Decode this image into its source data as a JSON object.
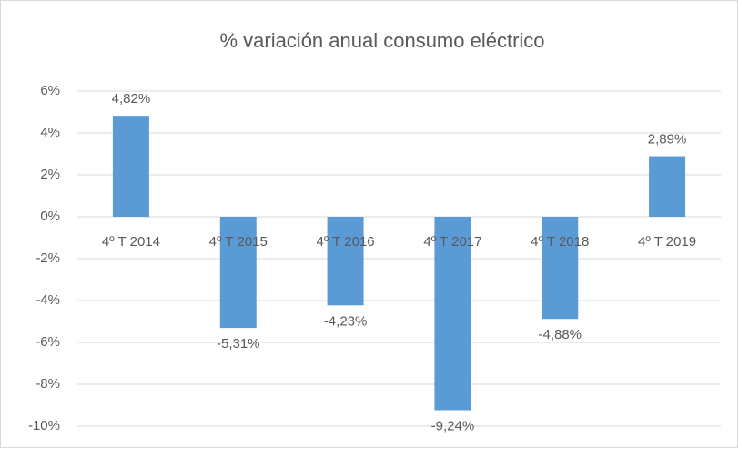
{
  "chart_data": {
    "type": "bar",
    "title": "% variación anual consumo eléctrico",
    "categories": [
      "4º T 2014",
      "4º T 2015",
      "4º T 2016",
      "4º T 2017",
      "4º T 2018",
      "4º T 2019"
    ],
    "values": [
      4.82,
      -5.31,
      -4.23,
      -9.24,
      -4.88,
      2.89
    ],
    "value_labels": [
      "4,82%",
      "-5,31%",
      "-4,23%",
      "-9,24%",
      "-4,88%",
      "2,89%"
    ],
    "color": "#5b9bd5",
    "ylim": [
      -10,
      6
    ],
    "yticks": [
      {
        "value": -10,
        "label": "-10%"
      },
      {
        "value": -8,
        "label": "-8%"
      },
      {
        "value": -6,
        "label": "-6%"
      },
      {
        "value": -4,
        "label": "-4%"
      },
      {
        "value": -2,
        "label": "-2%"
      },
      {
        "value": 0,
        "label": "0%"
      },
      {
        "value": 2,
        "label": "2%"
      },
      {
        "value": 4,
        "label": "4%"
      },
      {
        "value": 6,
        "label": "6%"
      }
    ],
    "grid": true
  }
}
